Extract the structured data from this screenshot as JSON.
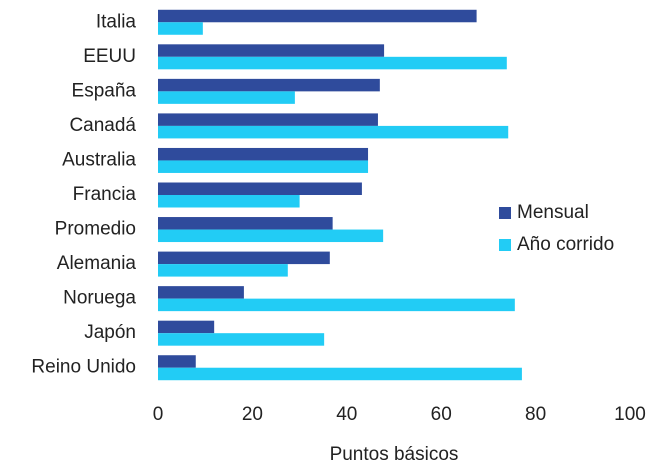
{
  "chart_data": {
    "type": "hbar",
    "categories": [
      "Italia",
      "EEUU",
      "España",
      "Canadá",
      "Australia",
      "Francia",
      "Promedio",
      "Alemania",
      "Noruega",
      "Japón",
      "Reino Unido"
    ],
    "series": [
      {
        "name": "Mensual",
        "color": "#2f4b9c",
        "values": [
          67.5,
          47.9,
          47,
          46.6,
          44.5,
          43.2,
          37,
          36.4,
          18.2,
          11.9,
          8
        ]
      },
      {
        "name": "Año corrido",
        "color": "#22ccf5",
        "values": [
          9.5,
          73.9,
          29,
          74.2,
          44.5,
          30,
          47.7,
          27.5,
          75.6,
          35.2,
          77.1
        ]
      }
    ],
    "x_label": "Puntos básicos",
    "xlim": [
      0,
      100
    ],
    "xticks": [
      0,
      20,
      40,
      60,
      80,
      100
    ],
    "grid": false,
    "legend_position": "right"
  }
}
